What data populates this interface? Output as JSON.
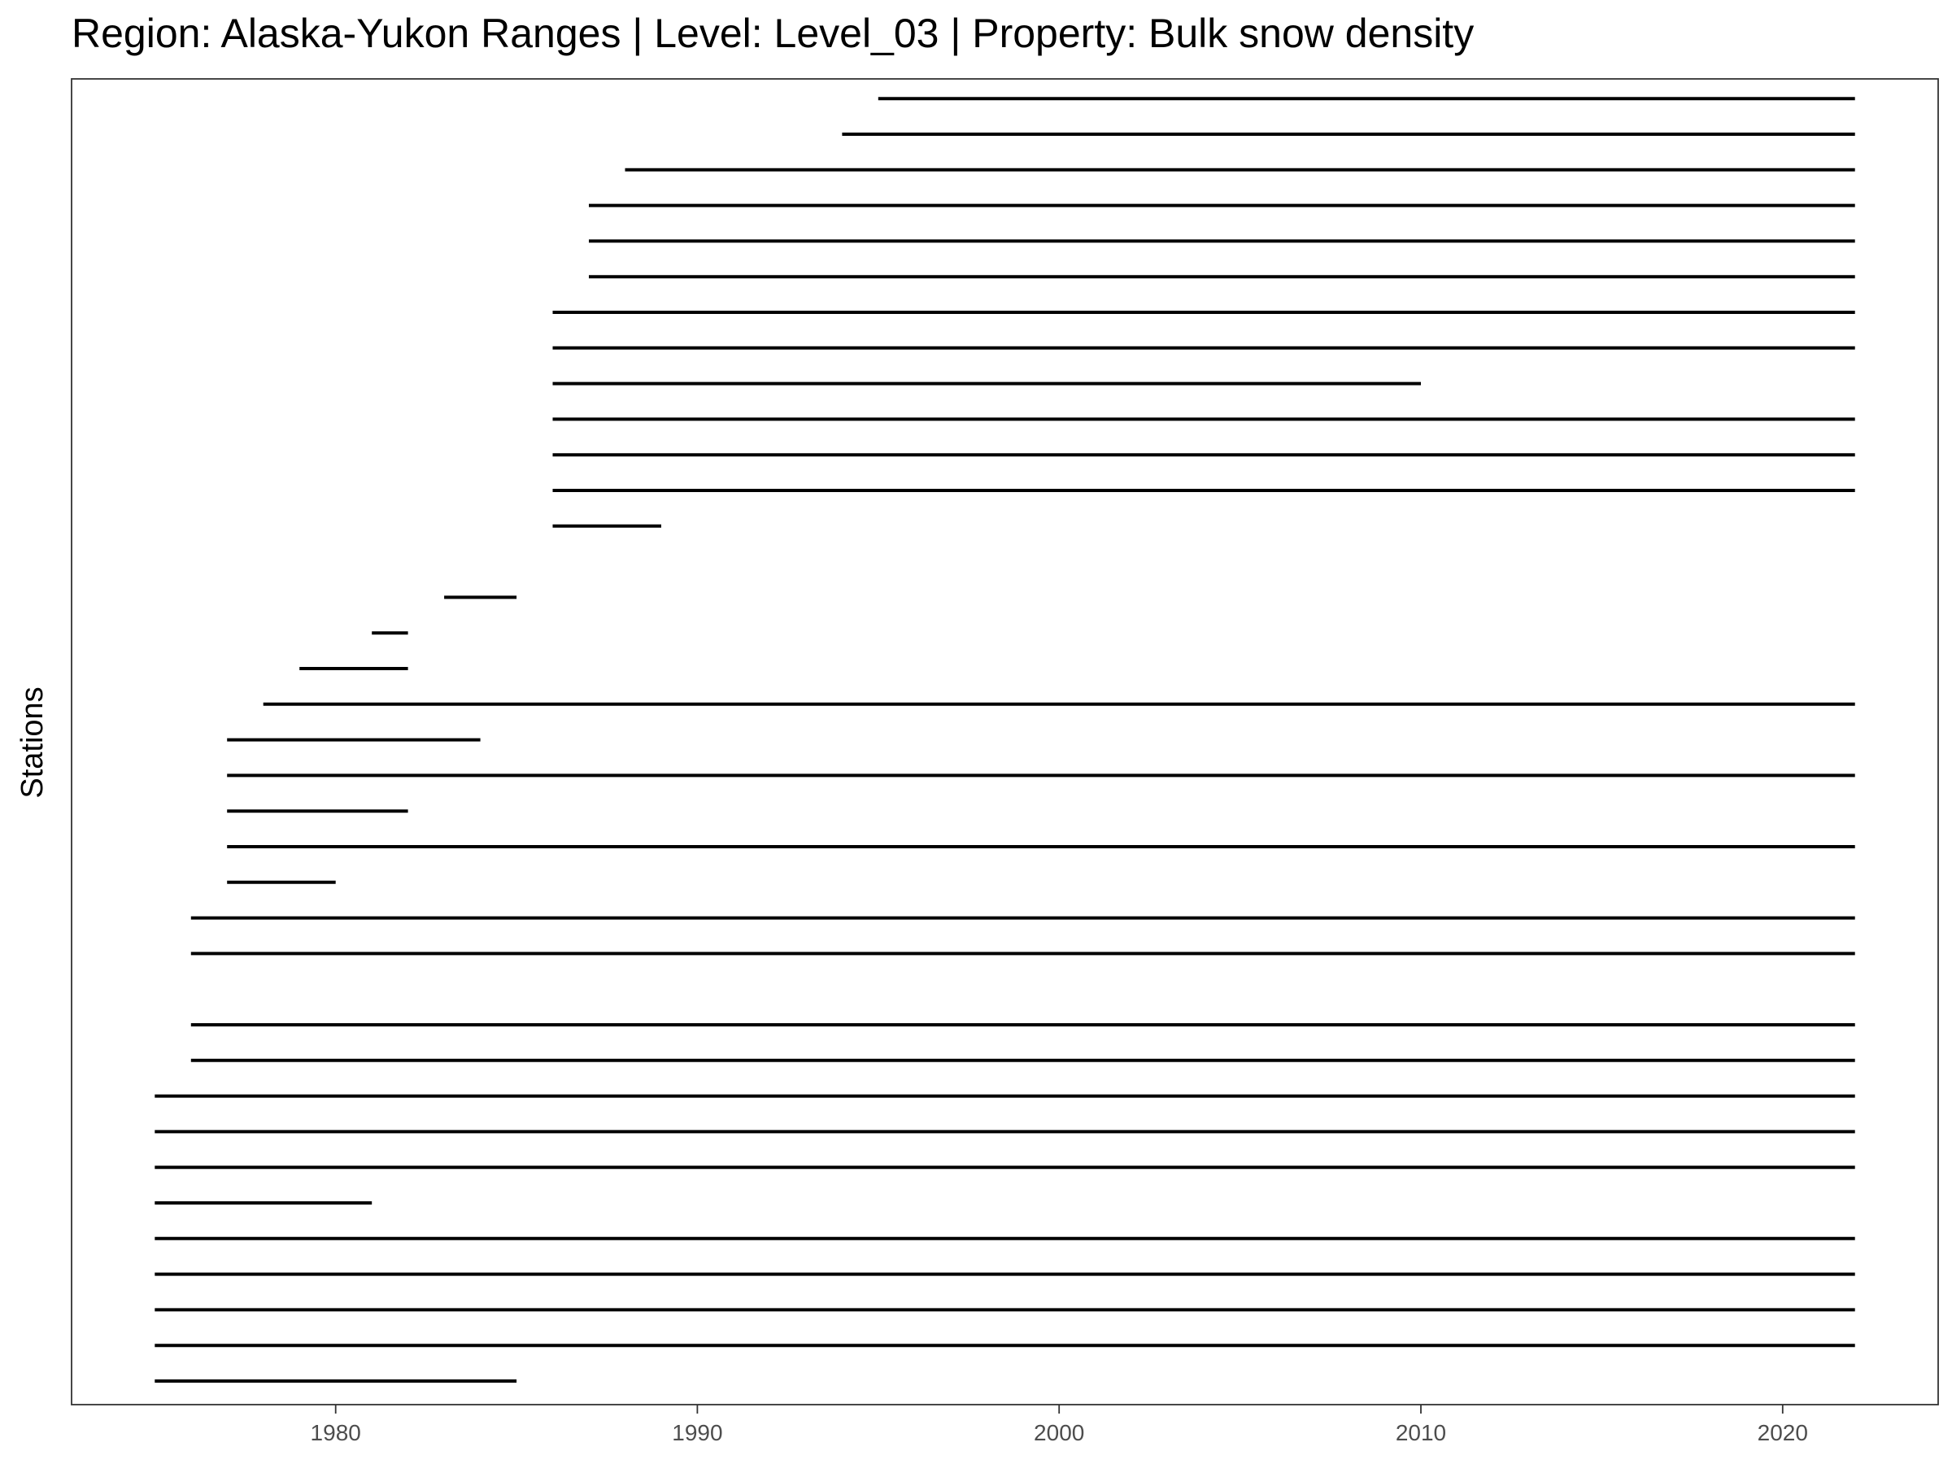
{
  "chart_data": {
    "type": "segment",
    "title": "Region: Alaska-Yukon Ranges | Level: Level_03 | Property: Bulk snow density",
    "xlabel": "",
    "ylabel": "Stations",
    "xlim": [
      1972.7,
      2024.3
    ],
    "x_ticks": [
      1980,
      1990,
      2000,
      2010,
      2020
    ],
    "y_ticks_shown": false,
    "grid": false,
    "legend": "none",
    "line_color": "#000000",
    "row_count": 37,
    "segments": [
      {
        "row": 1,
        "start": 1975,
        "end": 1985
      },
      {
        "row": 2,
        "start": 1975,
        "end": 2022
      },
      {
        "row": 3,
        "start": 1975,
        "end": 2022
      },
      {
        "row": 4,
        "start": 1975,
        "end": 2022
      },
      {
        "row": 5,
        "start": 1975,
        "end": 2022
      },
      {
        "row": 6,
        "start": 1975,
        "end": 1981
      },
      {
        "row": 7,
        "start": 1975,
        "end": 2022
      },
      {
        "row": 8,
        "start": 1975,
        "end": 2022
      },
      {
        "row": 9,
        "start": 1975,
        "end": 2022
      },
      {
        "row": 10,
        "start": 1976,
        "end": 2022
      },
      {
        "row": 11,
        "start": 1976,
        "end": 2022
      },
      {
        "row": 13,
        "start": 1976,
        "end": 2022
      },
      {
        "row": 14,
        "start": 1976,
        "end": 2022
      },
      {
        "row": 15,
        "start": 1977,
        "end": 1980
      },
      {
        "row": 16,
        "start": 1977,
        "end": 2022
      },
      {
        "row": 17,
        "start": 1977,
        "end": 1982
      },
      {
        "row": 18,
        "start": 1977,
        "end": 2022
      },
      {
        "row": 19,
        "start": 1977,
        "end": 1984
      },
      {
        "row": 20,
        "start": 1978,
        "end": 2022
      },
      {
        "row": 21,
        "start": 1979,
        "end": 1982
      },
      {
        "row": 22,
        "start": 1981,
        "end": 1982
      },
      {
        "row": 23,
        "start": 1983,
        "end": 1985
      },
      {
        "row": 25,
        "start": 1986,
        "end": 1989
      },
      {
        "row": 26,
        "start": 1986,
        "end": 2022
      },
      {
        "row": 27,
        "start": 1986,
        "end": 2022
      },
      {
        "row": 28,
        "start": 1986,
        "end": 2022
      },
      {
        "row": 29,
        "start": 1986,
        "end": 2010
      },
      {
        "row": 30,
        "start": 1986,
        "end": 2022
      },
      {
        "row": 31,
        "start": 1986,
        "end": 2022
      },
      {
        "row": 32,
        "start": 1987,
        "end": 2022
      },
      {
        "row": 33,
        "start": 1987,
        "end": 2022
      },
      {
        "row": 34,
        "start": 1987,
        "end": 2022
      },
      {
        "row": 35,
        "start": 1988,
        "end": 2022
      },
      {
        "row": 36,
        "start": 1994,
        "end": 2022
      },
      {
        "row": 37,
        "start": 1995,
        "end": 2022
      }
    ]
  }
}
